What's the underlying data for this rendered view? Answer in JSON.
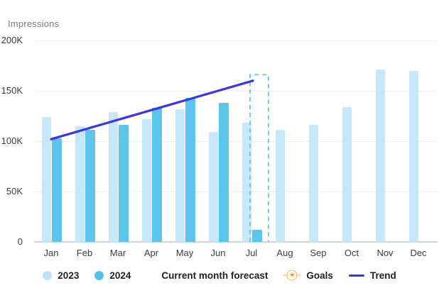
{
  "header": {
    "title": "Impressions"
  },
  "colors": {
    "bar_2023": "#C7E8FB",
    "bar_2024": "#5BC5EB",
    "trend": "#3B36E6",
    "forecast_outline": "#6FCBF0",
    "gridline": "#EDEDF1",
    "axis_line": "#CBD6DF",
    "goals": "#EFA23B"
  },
  "legend": {
    "items": [
      {
        "label": "2023",
        "swatch": "circle",
        "color": "#BCE4F8"
      },
      {
        "label": "2024",
        "swatch": "circle",
        "color": "#54C3EA"
      },
      {
        "label": "Current month forecast",
        "swatch": "none",
        "color": ""
      },
      {
        "label": "Goals",
        "swatch": "goal",
        "color": "#EFA23B"
      },
      {
        "label": "Trend",
        "swatch": "line",
        "color": "#3B36E6"
      }
    ]
  },
  "chart_data": {
    "type": "bar",
    "title": "Impressions",
    "ylabel": "Impressions",
    "unit": "K",
    "values_in": "thousands",
    "ylim": [
      0,
      200
    ],
    "grid": true,
    "legend_position": "bottom",
    "yticks": [
      {
        "label": "200K",
        "value": 200
      },
      {
        "label": "150K",
        "value": 150
      },
      {
        "label": "100K",
        "value": 100
      },
      {
        "label": "50K",
        "value": 50
      },
      {
        "label": "0",
        "value": 0
      }
    ],
    "categories": [
      "Jan",
      "Feb",
      "Mar",
      "Apr",
      "May",
      "Jun",
      "Jul",
      "Aug",
      "Sep",
      "Oct",
      "Nov",
      "Dec"
    ],
    "series": [
      {
        "name": "2023",
        "values": [
          124,
          115,
          129,
          122,
          132,
          109,
          118,
          111,
          116,
          134,
          171,
          170
        ]
      },
      {
        "name": "2024",
        "values": [
          103,
          111,
          116,
          133,
          143,
          138,
          12,
          null,
          null,
          null,
          null,
          null
        ]
      }
    ],
    "forecast": {
      "month": "Jul",
      "value": 166
    },
    "trend": {
      "from": {
        "month": "Jan",
        "value": 102
      },
      "to": {
        "month": "Jul",
        "value": 160
      }
    }
  }
}
